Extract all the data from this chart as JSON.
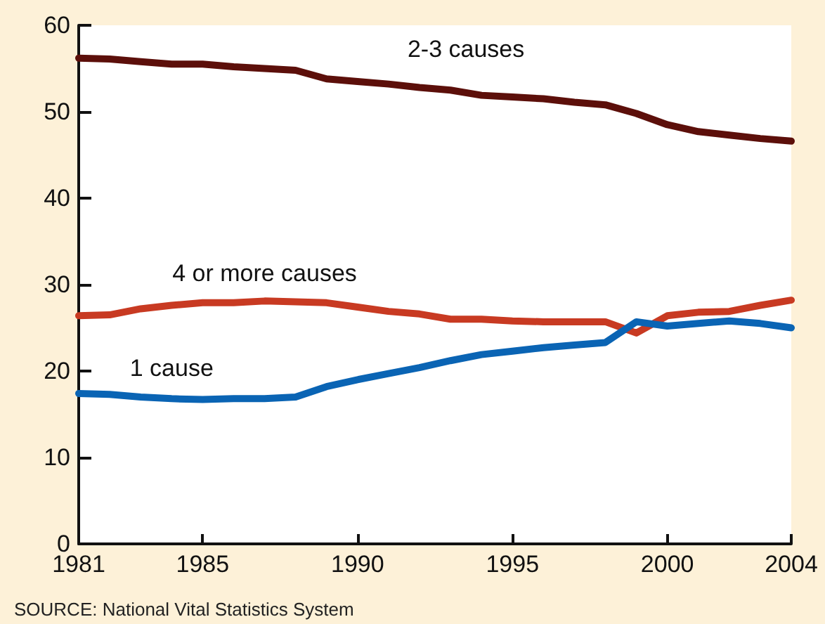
{
  "chart_data": {
    "type": "line",
    "x": [
      1981,
      1982,
      1983,
      1984,
      1985,
      1986,
      1987,
      1988,
      1989,
      1990,
      1991,
      1992,
      1993,
      1994,
      1995,
      1996,
      1997,
      1998,
      1999,
      2000,
      2001,
      2002,
      2003,
      2004
    ],
    "series": [
      {
        "name": "2-3 causes",
        "color": "#5c0f0a",
        "values": [
          56.2,
          56.1,
          55.8,
          55.5,
          55.5,
          55.2,
          55.0,
          54.8,
          53.8,
          53.5,
          53.2,
          52.8,
          52.5,
          51.9,
          51.7,
          51.5,
          51.1,
          50.8,
          49.8,
          48.5,
          47.7,
          47.3,
          46.9,
          46.6
        ]
      },
      {
        "name": "4 or more causes",
        "color": "#c83a22",
        "values": [
          26.4,
          26.5,
          27.2,
          27.6,
          27.9,
          27.9,
          28.1,
          28.0,
          27.9,
          27.4,
          26.9,
          26.6,
          26.0,
          26.0,
          25.8,
          25.7,
          25.7,
          25.7,
          24.4,
          26.4,
          26.8,
          26.9,
          27.6,
          28.2
        ]
      },
      {
        "name": "1 cause",
        "color": "#0a64b4",
        "values": [
          17.4,
          17.3,
          17.0,
          16.8,
          16.7,
          16.8,
          16.8,
          17.0,
          18.2,
          19.0,
          19.7,
          20.4,
          21.2,
          21.9,
          22.3,
          22.7,
          23.0,
          23.3,
          25.7,
          25.2,
          25.5,
          25.8,
          25.5,
          25.0
        ]
      }
    ],
    "xlim": [
      1981,
      2004
    ],
    "xticks": [
      1981,
      1985,
      1990,
      1995,
      2000,
      2004
    ],
    "ylim": [
      0,
      60
    ],
    "yticks": [
      0,
      10,
      20,
      30,
      40,
      50,
      60
    ],
    "grid": false,
    "legend": false,
    "marker": "none",
    "line_style": "solid",
    "annotations": [
      "SOURCE: National Vital Statistics System"
    ]
  }
}
